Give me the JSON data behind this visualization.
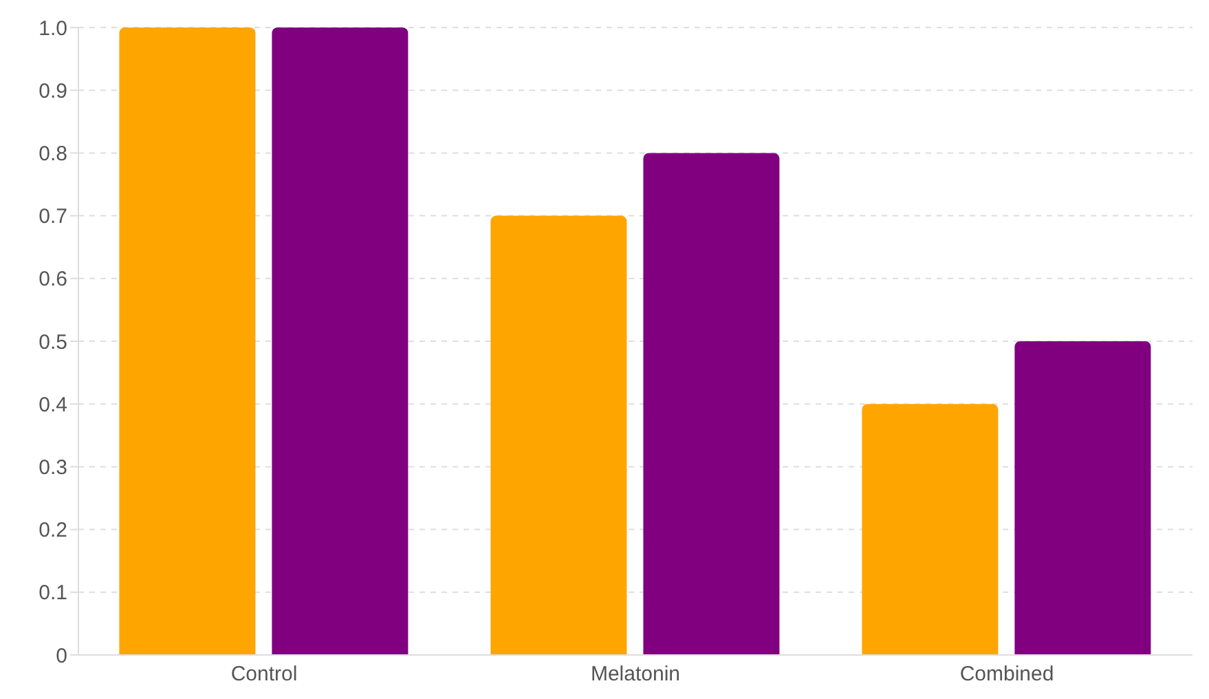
{
  "chart_data": {
    "type": "bar",
    "categories": [
      "Control",
      "Melatonin",
      "Combined"
    ],
    "series": [
      {
        "color": "#ffa500",
        "values": [
          1.0,
          0.7,
          0.4
        ]
      },
      {
        "color": "#800080",
        "values": [
          1.0,
          0.8,
          0.5
        ]
      }
    ],
    "ylim": [
      0,
      1
    ],
    "yticks": [
      0,
      0.1,
      0.2,
      0.3,
      0.4,
      0.5,
      0.6,
      0.7,
      0.8,
      0.9,
      {
        "value": 1,
        "label": "1.0"
      }
    ],
    "grid": "y",
    "legend": false
  }
}
